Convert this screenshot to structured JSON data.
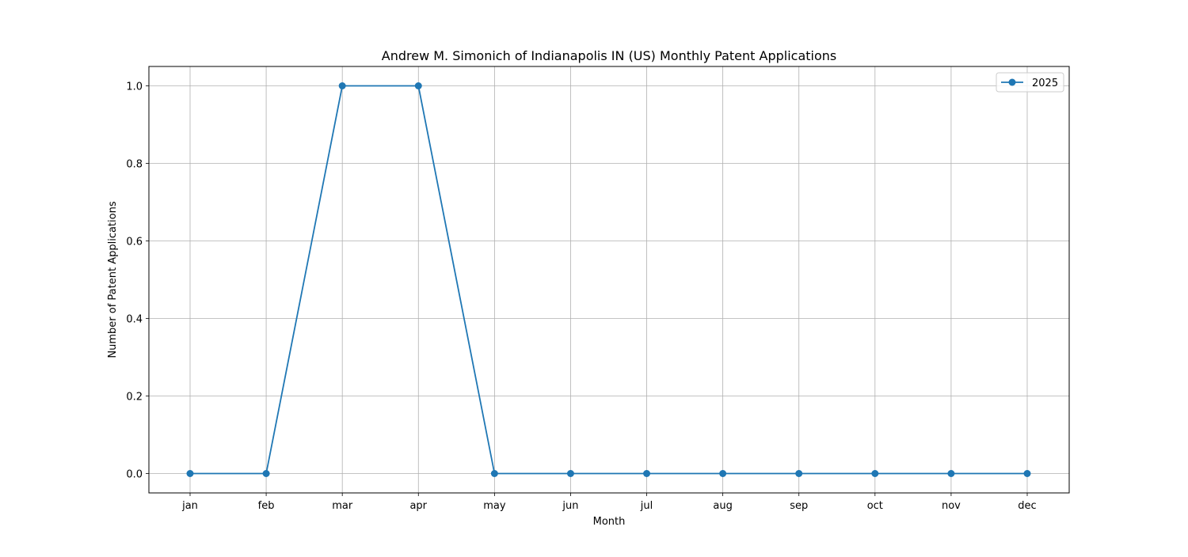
{
  "chart_data": {
    "type": "line",
    "title": "Andrew M. Simonich of Indianapolis IN (US) Monthly Patent Applications",
    "xlabel": "Month",
    "ylabel": "Number of Patent Applications",
    "categories": [
      "jan",
      "feb",
      "mar",
      "apr",
      "may",
      "jun",
      "jul",
      "aug",
      "sep",
      "oct",
      "nov",
      "dec"
    ],
    "series": [
      {
        "name": "2025",
        "values": [
          0,
          0,
          1,
          1,
          0,
          0,
          0,
          0,
          0,
          0,
          0,
          0
        ],
        "color": "#1f77b4",
        "marker": "circle"
      }
    ],
    "yticks": [
      "0.0",
      "0.2",
      "0.4",
      "0.6",
      "0.8",
      "1.0"
    ],
    "ylim": [
      -0.05,
      1.05
    ],
    "grid": true,
    "legend_position": "top-right"
  }
}
